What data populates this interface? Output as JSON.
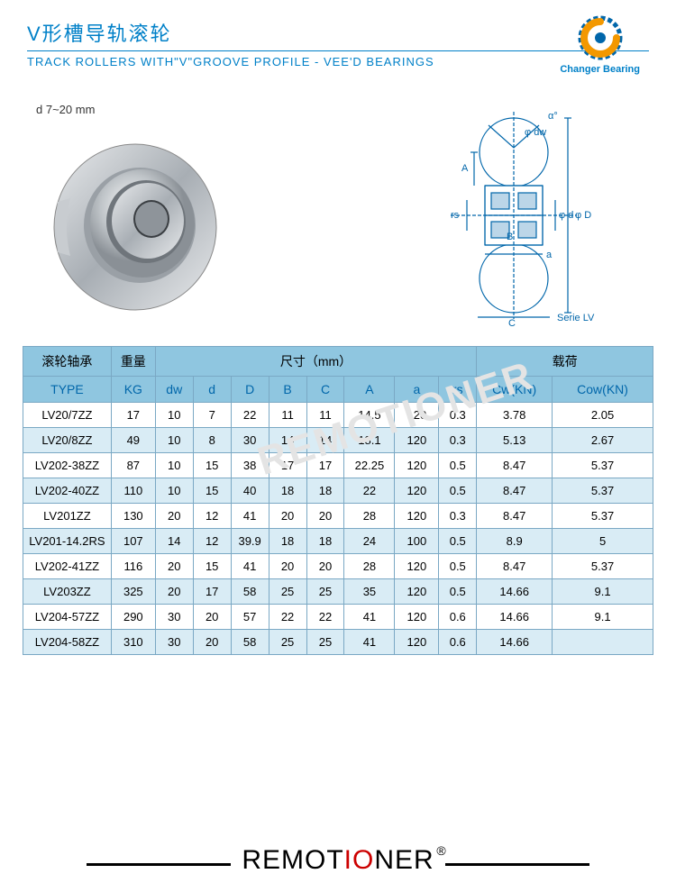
{
  "header": {
    "title_cn": "V形槽导轨滚轮",
    "title_en": "TRACK ROLLERS WITH\"V\"GROOVE PROFILE - VEE'D BEARINGS",
    "logo_text": "Changer Bearing"
  },
  "dimension_label": "d  7~20 mm",
  "diagram": {
    "labels": {
      "alpha": "α°",
      "dw": "φ dw",
      "A": "A",
      "rs": "rs",
      "B": "B",
      "d": "φ d",
      "D": "φ D",
      "a": "a",
      "C": "C",
      "series": "Serie LV"
    }
  },
  "watermark": "REMOTIONER",
  "table": {
    "header_cn": {
      "type": "滚轮轴承",
      "weight": "重量",
      "dimensions": "尺寸（mm）",
      "load": "载荷"
    },
    "header_en": [
      "TYPE",
      "KG",
      "dw",
      "d",
      "D",
      "B",
      "C",
      "A",
      "a",
      "rs",
      "Cw(KN)",
      "Cow(KN)"
    ],
    "rows": [
      [
        "LV20/7ZZ",
        "17",
        "10",
        "7",
        "22",
        "11",
        "11",
        "14.5",
        "120",
        "0.3",
        "3.78",
        "2.05"
      ],
      [
        "LV20/8ZZ",
        "49",
        "10",
        "8",
        "30",
        "14",
        "14",
        "18.1",
        "120",
        "0.3",
        "5.13",
        "2.67"
      ],
      [
        "LV202-38ZZ",
        "87",
        "10",
        "15",
        "38",
        "17",
        "17",
        "22.25",
        "120",
        "0.5",
        "8.47",
        "5.37"
      ],
      [
        "LV202-40ZZ",
        "110",
        "10",
        "15",
        "40",
        "18",
        "18",
        "22",
        "120",
        "0.5",
        "8.47",
        "5.37"
      ],
      [
        "LV201ZZ",
        "130",
        "20",
        "12",
        "41",
        "20",
        "20",
        "28",
        "120",
        "0.3",
        "8.47",
        "5.37"
      ],
      [
        "LV201-14.2RS",
        "107",
        "14",
        "12",
        "39.9",
        "18",
        "18",
        "24",
        "100",
        "0.5",
        "8.9",
        "5"
      ],
      [
        "LV202-41ZZ",
        "116",
        "20",
        "15",
        "41",
        "20",
        "20",
        "28",
        "120",
        "0.5",
        "8.47",
        "5.37"
      ],
      [
        "LV203ZZ",
        "325",
        "20",
        "17",
        "58",
        "25",
        "25",
        "35",
        "120",
        "0.5",
        "14.66",
        "9.1"
      ],
      [
        "LV204-57ZZ",
        "290",
        "30",
        "20",
        "57",
        "22",
        "22",
        "41",
        "120",
        "0.6",
        "14.66",
        "9.1"
      ],
      [
        "LV204-58ZZ",
        "310",
        "30",
        "20",
        "58",
        "25",
        "25",
        "41",
        "120",
        "0.6",
        "14.66",
        ""
      ]
    ],
    "col_widths": [
      "14%",
      "7%",
      "6%",
      "6%",
      "6%",
      "6%",
      "6%",
      "8%",
      "7%",
      "6%",
      "12%",
      "16%"
    ],
    "header_bg": "#8fc6e0",
    "row_alt_bg": "#d9ecf5",
    "border_color": "#7aa8c4"
  },
  "footer": {
    "brand_pre": "REMOT",
    "brand_mid": "IO",
    "brand_post": "NER",
    "reg": "®"
  }
}
